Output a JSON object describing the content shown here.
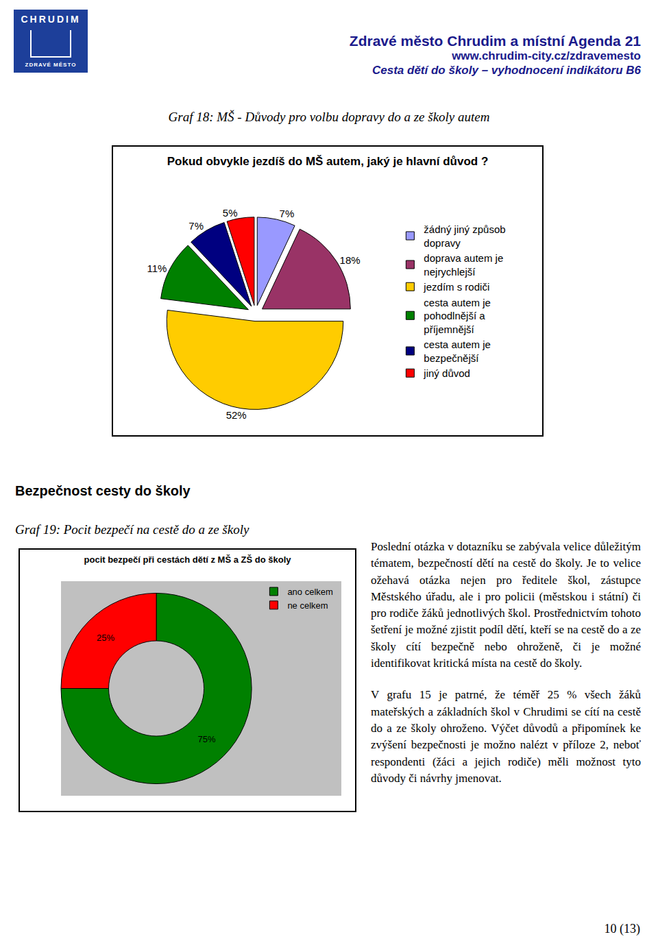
{
  "header": {
    "logo_top": "CHRUDIM",
    "logo_bottom": "ZDRAVÉ MĚSTO",
    "title": "Zdravé město Chrudim a místní Agenda 21",
    "url": "www.chrudim-city.cz/zdravemesto",
    "subtitle": "Cesta dětí do školy – vyhodnocení indikátoru B6"
  },
  "caption_18": "Graf 18: MŠ - Důvody pro volbu dopravy do a ze školy autem",
  "heading": "Bezpečnost cesty do školy",
  "caption_19": "Graf 19: Pocit bezpečí na cestě do a ze školy",
  "chart_data": [
    {
      "type": "pie",
      "title": "Pokud obvykle jezdíš do MŠ autem, jaký je hlavní důvod ?",
      "categories": [
        "žádný jiný způsob dopravy",
        "doprava autem je nejrychlejší",
        "jezdím s rodiči",
        "cesta autem je pohodlnější a příjemnější",
        "cesta autem je bezpečnější",
        "jiný důvod"
      ],
      "values": [
        7,
        18,
        52,
        11,
        7,
        5
      ],
      "value_labels": [
        "7%",
        "18%",
        "52%",
        "11%",
        "7%",
        "5%"
      ],
      "colors": [
        "#9999ff",
        "#993366",
        "#ffcc00",
        "#008000",
        "#000080",
        "#ff0000"
      ],
      "data_labels": true,
      "legend": "right"
    },
    {
      "type": "donut",
      "title": "pocit bezpečí při cestách dětí z MŠ a ZŠ do školy",
      "categories": [
        "ano celkem",
        "ne celkem"
      ],
      "values": [
        75,
        25
      ],
      "value_labels": [
        "75%",
        "25%"
      ],
      "colors": [
        "#008000",
        "#ff0000"
      ],
      "data_labels": true,
      "legend": "top right"
    }
  ],
  "paragraphs": [
    "Poslední otázka v dotazníku se zabývala velice důležitým tématem, bezpečností dětí na cestě do školy. Je to velice ožehavá otázka nejen pro ředitele škol, zástupce Městského úřadu, ale i pro policii (městskou i státní) či pro rodiče žáků jednotlivých škol. Prostřednictvím tohoto šetření je možné zjistit podíl dětí, kteří se na cestě do a ze školy cítí bezpečně nebo ohroženě, či je možné identifikovat kritická místa na cestě do školy.",
    "V grafu 15 je patrné, že téměř 25 % všech žáků mateřských a základních škol v Chrudimi se cítí na cestě do a ze školy ohroženo. Výčet důvodů a připomínek ke zvýšení bezpečnosti je možno nalézt v příloze 2, neboť respondenti (žáci a jejich rodiče) měli možnost tyto důvody či návrhy jmenovat."
  ],
  "page_number": "10 (13)"
}
